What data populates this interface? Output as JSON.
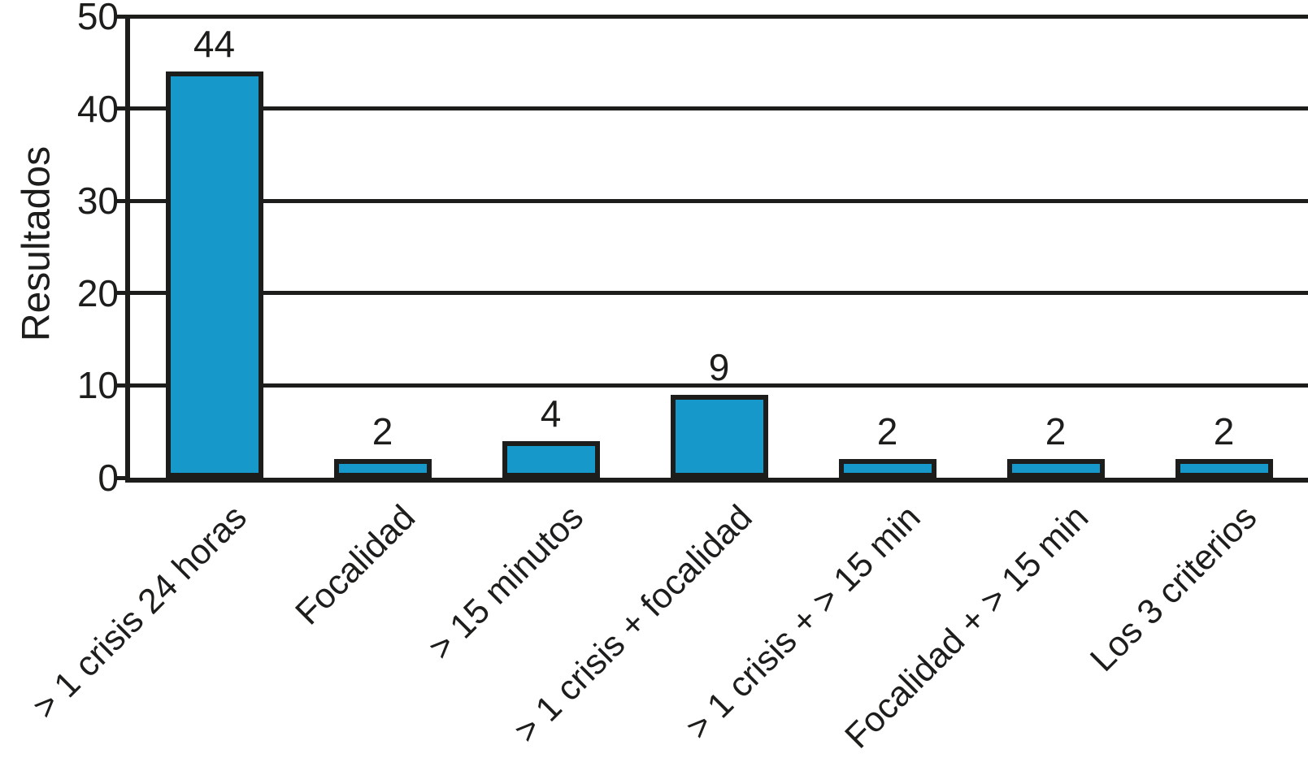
{
  "chart_data": {
    "type": "bar",
    "title": "",
    "xlabel": "",
    "ylabel": "Resultados",
    "categories": [
      "> 1 crisis 24 horas",
      "Focalidad",
      "> 15 minutos",
      "> 1 crisis + focalidad",
      "> 1 crisis + > 15 min",
      "Focalidad + > 15 min",
      "Los 3 criterios"
    ],
    "values": [
      44,
      2,
      4,
      9,
      2,
      2,
      2
    ],
    "bar_value_labels": [
      "44",
      "2",
      "4",
      "9",
      "2",
      "2",
      "2"
    ],
    "ytick_labels": [
      "0",
      "10",
      "20",
      "30",
      "40",
      "50"
    ],
    "yticks": [
      0,
      10,
      20,
      30,
      40,
      50
    ],
    "ylim": [
      0,
      50
    ],
    "grid": "horizontal",
    "legend_position": "none",
    "x_tick_rotation_deg": 45,
    "colors": {
      "bar_fill": "#1698CA",
      "line": "#1d1d1b",
      "text": "#1d1d1b",
      "background": "#ffffff"
    }
  }
}
